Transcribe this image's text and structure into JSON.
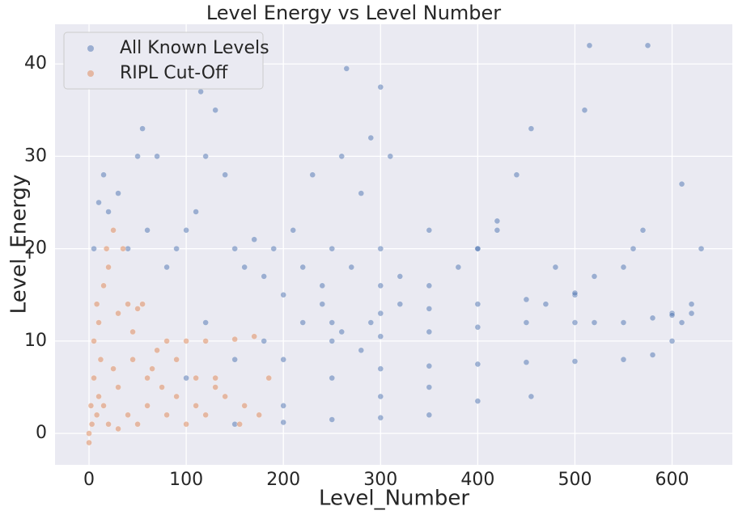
{
  "chart_data": {
    "type": "scatter",
    "title": "Level Energy vs Level Number",
    "x_label": "Level_Number",
    "y_label": "Level_Energy",
    "xlim": [
      -35,
      662
    ],
    "ylim": [
      -3.4,
      44.3
    ],
    "xticks": [
      0,
      100,
      200,
      300,
      400,
      500,
      600
    ],
    "yticks": [
      0,
      10,
      20,
      30,
      40
    ],
    "grid": true,
    "legend": "upper left",
    "series": [
      {
        "name": "All Known Levels",
        "color": "#4c72b0",
        "x": [
          5,
          10,
          15,
          20,
          30,
          40,
          50,
          55,
          60,
          70,
          80,
          90,
          100,
          110,
          115,
          120,
          130,
          140,
          150,
          160,
          170,
          180,
          190,
          200,
          210,
          220,
          230,
          240,
          250,
          260,
          265,
          270,
          280,
          290,
          300,
          310,
          320,
          350,
          380,
          400,
          420,
          440,
          455,
          470,
          500,
          510,
          515,
          520,
          550,
          570,
          575,
          580,
          600,
          610,
          620,
          630,
          150,
          200,
          250,
          300,
          350,
          200,
          300,
          350,
          400,
          455,
          250,
          300,
          350,
          400,
          450,
          500,
          550,
          580,
          600,
          610,
          250,
          300,
          350,
          400,
          450,
          500,
          550,
          600,
          620,
          250,
          300,
          350,
          400,
          450,
          500,
          300,
          350,
          400,
          420,
          480,
          520,
          560,
          200,
          150,
          100,
          120,
          180,
          220,
          240,
          260,
          280,
          290,
          300,
          320
        ],
        "values": [
          20,
          25,
          28,
          24,
          26,
          20,
          30,
          33,
          22,
          30,
          18,
          20,
          22,
          24,
          37,
          30,
          35,
          28,
          20,
          18,
          21,
          17,
          20,
          15,
          22,
          18,
          28,
          16,
          20,
          30,
          39.5,
          18,
          26,
          32,
          37.5,
          30,
          14,
          16,
          18,
          20,
          22,
          28,
          33,
          14,
          15,
          35,
          42,
          12,
          18,
          22,
          42,
          12.5,
          13,
          27,
          14,
          20,
          1,
          1.2,
          1.5,
          1.7,
          2,
          3,
          4,
          5,
          3.5,
          4,
          6,
          7,
          7.3,
          7.5,
          7.7,
          7.8,
          8,
          8.5,
          10,
          12,
          10,
          10.5,
          11,
          11.5,
          12,
          12,
          12,
          12.8,
          13,
          12,
          13,
          13.5,
          14,
          14.5,
          15.2,
          20,
          22,
          20,
          23,
          18,
          17,
          20,
          8,
          8,
          6,
          12,
          10,
          12,
          14,
          11,
          9,
          12,
          16,
          17
        ]
      },
      {
        "name": "RIPL Cut-Off",
        "color": "#dd8452",
        "x": [
          0,
          0,
          2,
          5,
          5,
          8,
          10,
          12,
          15,
          18,
          20,
          25,
          30,
          30,
          35,
          40,
          40,
          45,
          50,
          55,
          60,
          60,
          70,
          75,
          80,
          90,
          100,
          100,
          110,
          120,
          130,
          140,
          150,
          155,
          160,
          170,
          175,
          185,
          20,
          30,
          50,
          80,
          120,
          10,
          25,
          45,
          65,
          90,
          110,
          130,
          3,
          8,
          15
        ],
        "values": [
          -1,
          0,
          3,
          6,
          10,
          14,
          12,
          8,
          16,
          20,
          18,
          22,
          13,
          5,
          20,
          14,
          2,
          8,
          13.5,
          14,
          6,
          3,
          9,
          5,
          10,
          4,
          10,
          1,
          3,
          10,
          5,
          4,
          10.2,
          1,
          3,
          10.5,
          2,
          6,
          1,
          0.5,
          1,
          2,
          2,
          4,
          7,
          11,
          7,
          8,
          6,
          6,
          1,
          2,
          3
        ]
      }
    ]
  }
}
